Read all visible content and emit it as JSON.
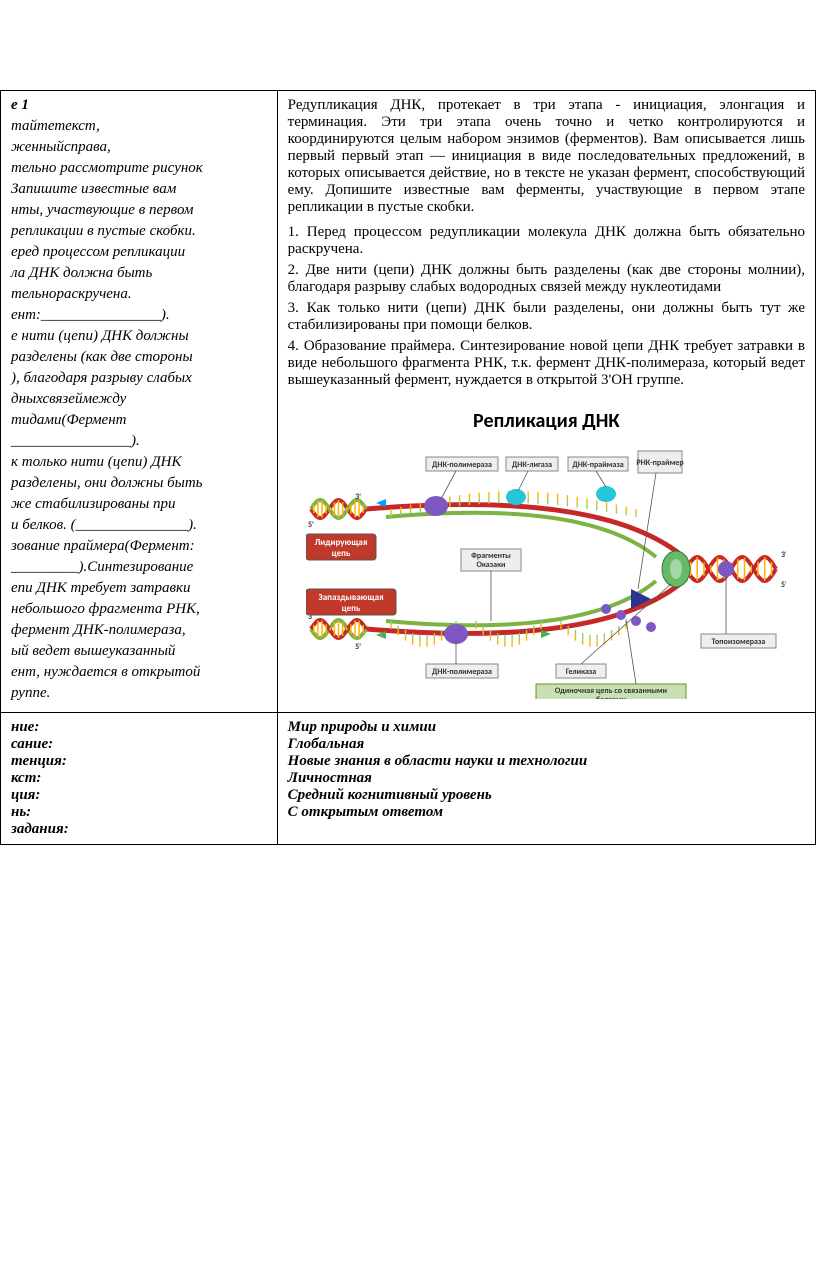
{
  "left": {
    "title": "е 1",
    "p1a": "тайте",
    "p1b": "текст,",
    "p2a": "женный",
    "p2b": "справа,",
    "p3": "тельно рассмотрите рисунок",
    "p4": "  Запишите известные вам",
    "p5": "нты, участвующие в первом",
    "p6": "репликации  в пустые скобки.",
    "p7": "еред процессом репликации",
    "p8a": "ла  ДНК  должна  быть",
    "p9a": "тельно",
    "p9b": "раскручена.",
    "p10": "ент:________________).",
    "p11": "е нити (цепи) ДНК должны",
    "p12": "разделены (как две стороны",
    "p13": "), благодаря  разрыву слабых",
    "p14a": "дных",
    "p14b": "связей",
    "p14c": "между",
    "p15a": "тидами",
    "p15b": "(Фермент",
    "p16": "________________).",
    "p17": "к  только  нити  (цепи)  ДНК",
    "p18": "разделены, они должны быть",
    "p19": "же   стабилизированы   при",
    "p20": "и белков. (_______________).",
    "p21": "зование праймера(Фермент:",
    "p22": "_________).Синтезирование",
    "p23": "епи ДНК требует затравки",
    "p24": "небольшого фрагмента РНК,",
    "p25": "фермент  ДНК-полимераза,",
    "p26": "ый  ведет  вышеуказанный",
    "p27": "ент,   нуждается  в  открытой",
    "p28": "руппе."
  },
  "right": {
    "intro": "Редупликация ДНК, протекает в три этапа - инициация, элонгация и терминация. Эти три этапа очень точно и четко контролируются и координируются целым набором энзимов (ферментов).  Вам описывается лишь первый   первый этап — инициация  в виде последовательных предложений, в которых описывается  действие,  но  в  тексте  не  указан  фермент, способствующий ему.  Допишите известные вам ферменты, участвующие в первом этапе репликации  в пустые скобки.",
    "li1": "1.  Перед процессом редупликации молекула ДНК должна быть обязательно раскручена.",
    "li2": "2. Две нити (цепи) ДНК  должны быть разделены (как две стороны молнии), благодаря разрыву слабых водородных связей между нуклеотидами",
    "li3": "3. Как только  нити (цепи)  ДНК были разделены, они должны быть тут же стабилизированы при помощи белков.",
    "li4": " 4. Образование праймера. Синтезирование  новой цепи ДНК требует затравки в виде небольшого фрагмента РНК, т.к. фермент ДНК-полимераза, который ведет вышеуказанный фермент,  нуждается в открытой  3'ОН группе."
  },
  "diagram": {
    "title": "Репликация ДНК",
    "labels": {
      "leading": "Лидирующая цепь",
      "lagging": "Запаздывающая цепь",
      "dna_ligase": "ДНК-лигаза",
      "dna_polymerase": "ДНК-полимераза",
      "dna_primase": "ДНК-праймаза",
      "rna_primer": "РНК-праймер",
      "okazaki": "Фрагменты Оказаки",
      "helicase": "Геликаза",
      "topoisomerase": "Топоизомераза",
      "ssb": "Одиночная цепь со  связанными белками",
      "three": "3'",
      "five": "5'"
    },
    "colors": {
      "strand_red": "#c62828",
      "strand_green": "#7cb342",
      "base_orange": "#ffb300",
      "base_green": "#9ccc65",
      "box_bg": "#eeeeee",
      "box_border": "#888",
      "big_box_red": "#c0392b",
      "enzyme_blue": "#26c6da",
      "enzyme_purple": "#7e57c2",
      "enzyme_green": "#66bb6a",
      "triangle": "#283593",
      "arrow": "#00a0ff",
      "arrow_green": "#4CAF50",
      "ssb_box": "#c8e0b4"
    }
  },
  "meta": {
    "left_labels": [
      "ние:",
      "сание:",
      "тенция:",
      "кст:",
      "ция:",
      "нь:",
      "задания:"
    ],
    "right_values": [
      "",
      "Мир природы и химии",
      "Глобальная",
      "Новые знания в области науки и технологии",
      "Личностная",
      "Средний когнитивный уровень",
      "С открытым ответом"
    ]
  }
}
